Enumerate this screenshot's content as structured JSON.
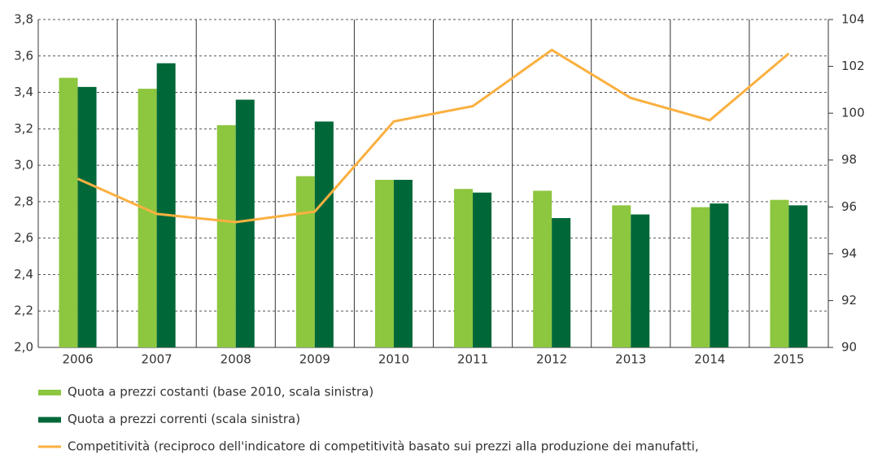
{
  "chart_data": {
    "type": "bar-line",
    "categories": [
      "2006",
      "2007",
      "2008",
      "2009",
      "2010",
      "2011",
      "2012",
      "2013",
      "2014",
      "2015"
    ],
    "series": [
      {
        "name": "Quota a prezzi costanti (base 2010, scala sinistra)",
        "color": "#8dc63f",
        "type": "bar",
        "values": [
          3.48,
          3.42,
          3.22,
          2.94,
          2.92,
          2.87,
          2.86,
          2.78,
          2.77,
          2.81
        ]
      },
      {
        "name": "Quota a prezzi correnti  (scala sinistra)",
        "color": "#006838",
        "type": "bar",
        "values": [
          3.43,
          3.56,
          3.36,
          3.24,
          2.92,
          2.85,
          2.71,
          2.73,
          2.79,
          2.78
        ]
      },
      {
        "name": "Competitività (reciproco dell'indicatore di competitività basato sui prezzi alla produzione dei manufatti,",
        "color": "#fbb040",
        "type": "line",
        "axis": "y2",
        "values": [
          97.2,
          95.7,
          95.35,
          95.8,
          99.65,
          100.3,
          102.7,
          100.65,
          99.7,
          102.55
        ]
      }
    ],
    "ylim": [
      2.0,
      3.8
    ],
    "yticks": [
      {
        "value": 2.0,
        "label": "2,0"
      },
      {
        "value": 2.2,
        "label": "2,2"
      },
      {
        "value": 2.4,
        "label": "2,4"
      },
      {
        "value": 2.6,
        "label": "2,6"
      },
      {
        "value": 2.8,
        "label": "2,8"
      },
      {
        "value": 3.0,
        "label": "3,0"
      },
      {
        "value": 3.2,
        "label": "3,2"
      },
      {
        "value": 3.4,
        "label": "3,4"
      },
      {
        "value": 3.6,
        "label": "3,6"
      },
      {
        "value": 3.8,
        "label": "3,8"
      }
    ],
    "y2lim": [
      90,
      104
    ],
    "y2ticks": [
      90,
      92,
      94,
      96,
      98,
      100,
      102,
      104
    ],
    "grid": true
  }
}
